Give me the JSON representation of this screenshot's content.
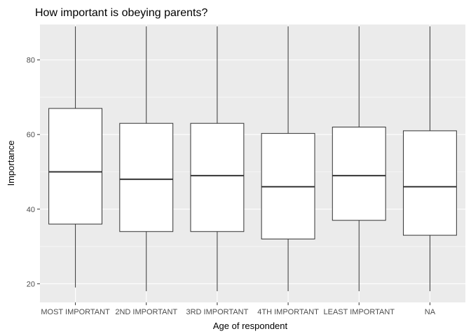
{
  "chart_data": {
    "type": "boxplot",
    "title": "How important is obeying parents?",
    "xlabel": "Age of respondent",
    "ylabel": "Importance",
    "ylim": [
      15,
      89.5
    ],
    "yticks": [
      20,
      40,
      60,
      80
    ],
    "grid": true,
    "legend": "none",
    "categories": [
      "MOST IMPORTANT",
      "2ND IMPORTANT",
      "3RD IMPORTANT",
      "4TH IMPORTANT",
      "LEAST IMPORTANT",
      "NA"
    ],
    "boxes": [
      {
        "min": 19,
        "q1": 36,
        "median": 50,
        "q3": 67,
        "max": 89
      },
      {
        "min": 18,
        "q1": 34,
        "median": 48,
        "q3": 63,
        "max": 89
      },
      {
        "min": 18,
        "q1": 34,
        "median": 49,
        "q3": 63,
        "max": 89
      },
      {
        "min": 18,
        "q1": 32,
        "median": 46,
        "q3": 60.3,
        "max": 89
      },
      {
        "min": 18,
        "q1": 37,
        "median": 49,
        "q3": 62,
        "max": 89
      },
      {
        "min": 18,
        "q1": 33,
        "median": 46,
        "q3": 61,
        "max": 89
      }
    ],
    "colors": {
      "panel_background": "#EBEBEB",
      "grid_major": "#FFFFFF",
      "box_fill": "#FFFFFF",
      "box_line": "#333333",
      "tick_text": "#4D4D4D",
      "label_text": "#000000"
    }
  }
}
